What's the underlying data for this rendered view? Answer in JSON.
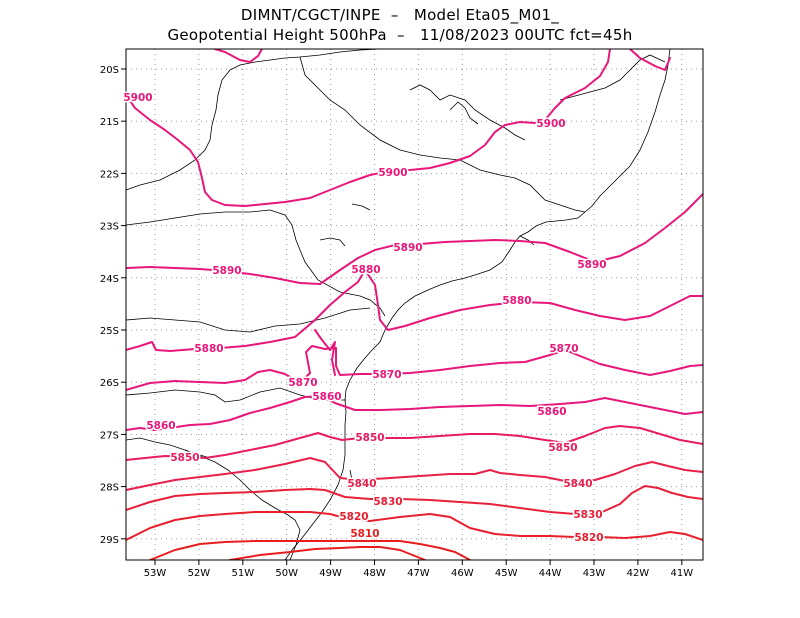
{
  "title_line1": "DIMNT/CGCT/INPE  –   Model Eta05_M01_",
  "title_line2": "Geopotential Height 500hPa  –   11/08/2023 00UTC fct=45h",
  "lon_labels": [
    "53W",
    "52W",
    "51W",
    "50W",
    "49W",
    "48W",
    "47W",
    "46W",
    "45W",
    "44W",
    "43W",
    "42W",
    "41W"
  ],
  "lat_labels": [
    "20S",
    "21S",
    "22S",
    "23S",
    "24S",
    "25S",
    "26S",
    "27S",
    "28S",
    "29S"
  ],
  "contour_labels": [
    {
      "text": "5900",
      "color": "#e8177a"
    },
    {
      "text": "5900",
      "color": "#e8177a"
    },
    {
      "text": "5900",
      "color": "#e8177a"
    },
    {
      "text": "5890",
      "color": "#e8177a"
    },
    {
      "text": "5890",
      "color": "#e8177a"
    },
    {
      "text": "5890",
      "color": "#e8177a"
    },
    {
      "text": "5880",
      "color": "#e8177a"
    },
    {
      "text": "5880",
      "color": "#e8177a"
    },
    {
      "text": "5880",
      "color": "#e8177a"
    },
    {
      "text": "5870",
      "color": "#e8177a"
    },
    {
      "text": "5870",
      "color": "#e8177a"
    },
    {
      "text": "5870",
      "color": "#e8177a"
    },
    {
      "text": "5860",
      "color": "#e8177a"
    },
    {
      "text": "5860",
      "color": "#e8177a"
    },
    {
      "text": "5860",
      "color": "#e8177a"
    },
    {
      "text": "5850",
      "color": "#e81c5e"
    },
    {
      "text": "5850",
      "color": "#e81c5e"
    },
    {
      "text": "5850",
      "color": "#e81c5e"
    },
    {
      "text": "5840",
      "color": "#e8204a"
    },
    {
      "text": "5840",
      "color": "#e8204a"
    },
    {
      "text": "5830",
      "color": "#e8203a"
    },
    {
      "text": "5830",
      "color": "#e8203a"
    },
    {
      "text": "5820",
      "color": "#e8202e"
    },
    {
      "text": "5820",
      "color": "#e8202e"
    },
    {
      "text": "5810",
      "color": "#e81e1e"
    }
  ],
  "colors": {
    "frame": "#000000",
    "grid": "#9a9a9a",
    "coast": "#000000"
  }
}
